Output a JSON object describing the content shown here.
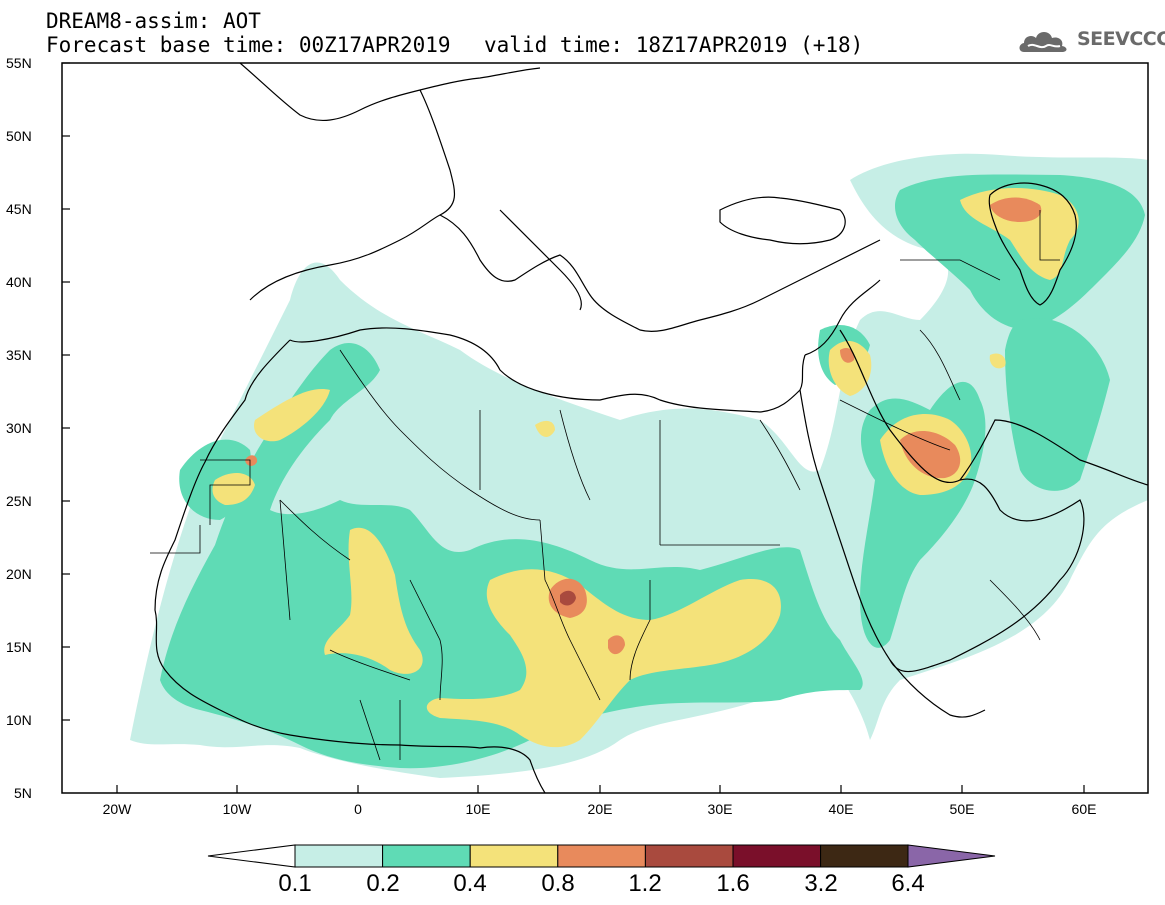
{
  "header": {
    "title_line1": "DREAM8-assim: AOT",
    "title_line2": "Forecast base time: 00Z17APR2019",
    "valid_time": "valid time: 18Z17APR2019 (+18)",
    "logo_text": "SEEVCCC"
  },
  "axes": {
    "lat_labels": [
      "55N",
      "50N",
      "45N",
      "40N",
      "35N",
      "30N",
      "25N",
      "20N",
      "15N",
      "10N",
      "5N"
    ],
    "lon_labels": [
      "20W",
      "10W",
      "0",
      "10E",
      "20E",
      "30E",
      "40E",
      "50E",
      "60E"
    ],
    "lon_range": [
      -25,
      65
    ],
    "lat_range": [
      5,
      55
    ]
  },
  "colorbar": {
    "labels": [
      "0.1",
      "0.2",
      "0.4",
      "0.8",
      "1.2",
      "1.6",
      "3.2",
      "6.4"
    ],
    "colors": [
      "#c6eee6",
      "#5fdbb5",
      "#f4e27a",
      "#e88a5c",
      "#a94a3e",
      "#7a0f2a",
      "#3d2814",
      "#8a66a8"
    ],
    "under_color": "#ffffff"
  },
  "map_colors": {
    "level1": "#c6eee6",
    "level2": "#5fdbb5",
    "level3": "#f4e27a",
    "level4": "#e88a5c",
    "level5": "#a94a3e",
    "coastline": "#000000"
  }
}
